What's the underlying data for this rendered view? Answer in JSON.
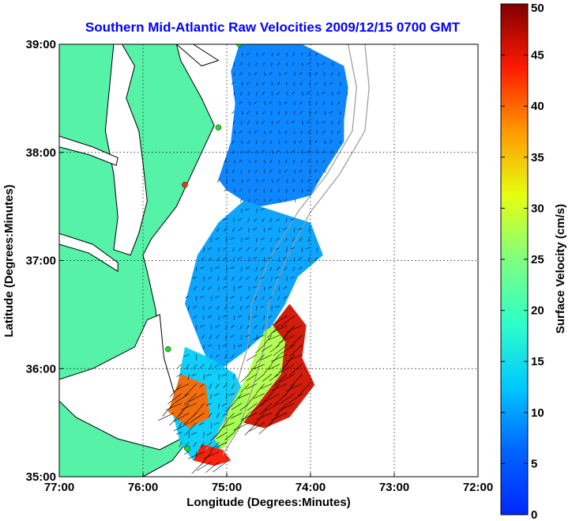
{
  "chart_data": {
    "type": "heatmap",
    "title": "Southern Mid-Atlantic Raw Velocities 2009/12/15 0700 GMT",
    "xlabel": "Longitude (Degrees:Minutes)",
    "ylabel": "Latitude (Degrees:Minutes)",
    "xlim": [
      -77,
      -72
    ],
    "ylim": [
      35,
      39
    ],
    "x_ticks": [
      {
        "value": -77,
        "label": "77:00"
      },
      {
        "value": -76,
        "label": "76:00"
      },
      {
        "value": -75,
        "label": "75:00"
      },
      {
        "value": -74,
        "label": "74:00"
      },
      {
        "value": -73,
        "label": "73:00"
      },
      {
        "value": -72,
        "label": "72:00"
      }
    ],
    "y_ticks": [
      {
        "value": 35,
        "label": "35:00"
      },
      {
        "value": 36,
        "label": "36:00"
      },
      {
        "value": 37,
        "label": "37:00"
      },
      {
        "value": 38,
        "label": "38:00"
      },
      {
        "value": 39,
        "label": "39:00"
      }
    ],
    "grid": true,
    "colorbar": {
      "label": "Surface Velocity (cm/s)",
      "min": 0,
      "max": 50,
      "ticks": [
        0,
        5,
        10,
        15,
        20,
        25,
        30,
        35,
        40,
        45,
        50
      ],
      "colormap": "jet"
    },
    "colors": {
      "land": "#55f2a8",
      "water": "#ffffff",
      "title": "#0000ff",
      "station": "#22dd22",
      "station_alt": "#ee3322",
      "coastline": "#000000",
      "bathymetry": "#999999",
      "arrows": "#000000"
    },
    "stations": [
      {
        "lon": -74.85,
        "lat": 39.0,
        "color": "#22dd22"
      },
      {
        "lon": -75.1,
        "lat": 38.23,
        "color": "#22dd22"
      },
      {
        "lon": -75.5,
        "lat": 37.7,
        "color": "#ee3322"
      },
      {
        "lon": -75.7,
        "lat": 36.18,
        "color": "#22dd22"
      },
      {
        "lon": -75.47,
        "lat": 35.26,
        "color": "#22dd22"
      }
    ],
    "regions": [
      {
        "name": "offshore-north",
        "speed_cm_s": 8,
        "polygon": [
          [
            -74.85,
            39.0
          ],
          [
            -74.1,
            39.0
          ],
          [
            -73.6,
            38.8
          ],
          [
            -73.55,
            38.6
          ],
          [
            -73.6,
            38.3
          ],
          [
            -73.6,
            38.1
          ],
          [
            -73.85,
            37.8
          ],
          [
            -74.0,
            37.6
          ],
          [
            -74.25,
            37.55
          ],
          [
            -74.6,
            37.5
          ],
          [
            -74.8,
            37.55
          ],
          [
            -75.0,
            37.65
          ],
          [
            -75.1,
            37.75
          ],
          [
            -74.95,
            38.1
          ],
          [
            -74.9,
            38.45
          ],
          [
            -74.95,
            38.75
          ]
        ]
      },
      {
        "name": "offshore-middle",
        "speed_cm_s": 10,
        "polygon": [
          [
            -75.1,
            37.35
          ],
          [
            -74.8,
            37.55
          ],
          [
            -74.4,
            37.45
          ],
          [
            -74.0,
            37.35
          ],
          [
            -73.85,
            37.05
          ],
          [
            -74.15,
            36.85
          ],
          [
            -74.3,
            36.6
          ],
          [
            -74.5,
            36.35
          ],
          [
            -74.8,
            36.15
          ],
          [
            -75.15,
            35.95
          ],
          [
            -75.3,
            36.2
          ],
          [
            -75.5,
            36.6
          ],
          [
            -75.35,
            37.05
          ]
        ]
      },
      {
        "name": "shelf-south",
        "speed_cm_s": 13,
        "polygon": [
          [
            -75.5,
            36.2
          ],
          [
            -75.2,
            36.1
          ],
          [
            -74.9,
            35.95
          ],
          [
            -74.75,
            35.7
          ],
          [
            -74.85,
            35.45
          ],
          [
            -75.0,
            35.3
          ],
          [
            -75.2,
            35.2
          ],
          [
            -75.4,
            35.15
          ],
          [
            -75.55,
            35.3
          ],
          [
            -75.65,
            35.6
          ]
        ]
      },
      {
        "name": "gulf-stream-inner",
        "speed_cm_s": 28,
        "polygon": [
          [
            -74.55,
            36.35
          ],
          [
            -74.3,
            36.45
          ],
          [
            -74.15,
            36.25
          ],
          [
            -74.3,
            35.95
          ],
          [
            -74.55,
            35.75
          ],
          [
            -74.85,
            35.45
          ],
          [
            -75.05,
            35.25
          ],
          [
            -75.15,
            35.35
          ],
          [
            -74.95,
            35.65
          ],
          [
            -74.75,
            35.95
          ]
        ]
      },
      {
        "name": "gulf-stream-core",
        "speed_cm_s": 46,
        "polygon": [
          [
            -74.25,
            36.6
          ],
          [
            -74.05,
            36.4
          ],
          [
            -74.1,
            36.1
          ],
          [
            -73.95,
            35.85
          ],
          [
            -74.25,
            35.55
          ],
          [
            -74.55,
            35.45
          ],
          [
            -74.8,
            35.5
          ],
          [
            -74.6,
            35.7
          ],
          [
            -74.35,
            35.95
          ],
          [
            -74.3,
            36.25
          ],
          [
            -74.45,
            36.4
          ]
        ]
      },
      {
        "name": "cape-hatteras-jet",
        "speed_cm_s": 40,
        "polygon": [
          [
            -75.55,
            35.95
          ],
          [
            -75.25,
            35.85
          ],
          [
            -75.2,
            35.55
          ],
          [
            -75.45,
            35.45
          ],
          [
            -75.7,
            35.6
          ]
        ]
      },
      {
        "name": "hatteras-tip",
        "speed_cm_s": 44,
        "polygon": [
          [
            -75.3,
            35.3
          ],
          [
            -75.05,
            35.25
          ],
          [
            -74.95,
            35.15
          ],
          [
            -75.15,
            35.1
          ],
          [
            -75.4,
            35.15
          ]
        ]
      }
    ],
    "vectors": {
      "spacing_deg": 0.09,
      "scale_px_per_cm_s": 0.55,
      "min_speed": 2,
      "max_speed": 50
    }
  }
}
